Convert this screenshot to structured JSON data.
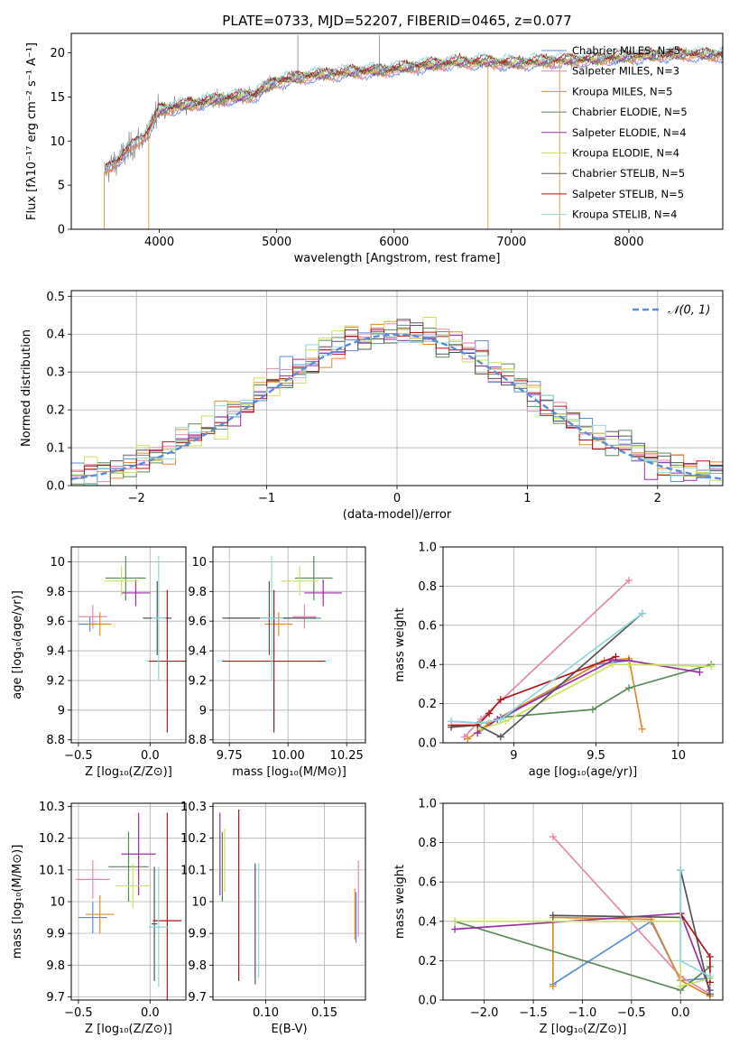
{
  "chart_data": [
    {
      "id": "spectrum",
      "type": "line",
      "title": "PLATE=0733, MJD=52207, FIBERID=0465, z=0.077",
      "xlabel": "wavelength [Angstrom, rest frame]",
      "ylabel": "Flux [fλ10⁻¹⁷ erg cm⁻² s⁻¹ A⁻¹]",
      "xlim": [
        3250,
        8800
      ],
      "ylim": [
        0,
        22.2
      ],
      "xticks": [
        4000,
        5000,
        6000,
        7000,
        8000
      ],
      "yticks": [
        0,
        5,
        10,
        15,
        20
      ],
      "grid": false,
      "legend_position": "top-right",
      "continuum": {
        "x": [
          3530,
          3700,
          3900,
          4000,
          4200,
          4500,
          4800,
          5000,
          5300,
          5600,
          5900,
          6200,
          6500,
          6800,
          7000,
          7200,
          7400,
          7600,
          8000,
          8400,
          8800
        ],
        "y": [
          6.5,
          8.5,
          11.0,
          13.5,
          14.0,
          14.7,
          15.2,
          16.8,
          17.4,
          17.8,
          18.0,
          18.5,
          18.9,
          19.0,
          18.8,
          19.0,
          19.1,
          19.2,
          19.6,
          19.8,
          19.8
        ]
      },
      "series": [
        {
          "name": "Chabrier MILES, N_SSP=5",
          "color": "#5b8cd8",
          "start": 3540
        },
        {
          "name": "Salpeter MILES, N_SSP=3",
          "color": "#e687b0",
          "start": 3540
        },
        {
          "name": "Kroupa MILES, N_SSP=5",
          "color": "#e08a2a",
          "start": 3540
        },
        {
          "name": "Chabrier ELODIE, N_SSP=5",
          "color": "#5a8a5a",
          "start": 3900
        },
        {
          "name": "Salpeter ELODIE, N_SSP=4",
          "color": "#9b2ea8",
          "start": 3900
        },
        {
          "name": "Kroupa ELODIE, N_SSP=4",
          "color": "#c9e45a",
          "start": 3900
        },
        {
          "name": "Chabrier STELIB, N_SSP=5",
          "color": "#555555",
          "start": 3540
        },
        {
          "name": "Salpeter STELIB, N_SSP=5",
          "color": "#b01515",
          "start": 3540
        },
        {
          "name": "Kroupa STELIB, N_SSP=4",
          "color": "#8fd8d8",
          "start": 3540
        }
      ]
    },
    {
      "id": "residuals",
      "type": "bar",
      "xlabel": "(data-model)/error",
      "ylabel": "Normed distribution",
      "xlim": [
        -2.5,
        2.5
      ],
      "ylim": [
        0,
        0.515
      ],
      "xticks": [
        -2,
        -1,
        0,
        1,
        2
      ],
      "xtick_labels": [
        "−2",
        "−1",
        "0",
        "1",
        "2"
      ],
      "yticks": [
        0,
        0.1,
        0.2,
        0.3,
        0.4,
        0.5
      ],
      "ytick_labels": [
        "0.0",
        "0.1",
        "0.2",
        "0.3",
        "0.4",
        "0.5"
      ],
      "grid": true,
      "legend_position": "top-right",
      "reference_label": "𝒩(0, 1)",
      "reference_color": "#5b8cd8",
      "bin_width": 0.1
    },
    {
      "id": "age-vs-Z",
      "type": "scatter",
      "xlabel": "Z [log₁₀(Z/Z⊙)]",
      "ylabel": "age  [log₁₀(age/yr)]",
      "xlim": [
        -0.55,
        0.25
      ],
      "ylim": [
        8.78,
        10.1
      ],
      "xticks": [
        -0.5,
        0.0
      ],
      "xtick_labels": [
        "−0.5",
        "0.0"
      ],
      "yticks": [
        8.8,
        9.0,
        9.2,
        9.4,
        9.6,
        9.8,
        10.0
      ],
      "grid": true,
      "points": [
        {
          "x": -0.42,
          "y": 9.58,
          "xerr": 0.08,
          "yerr": 0.05,
          "color": "#5b8cd8"
        },
        {
          "x": -0.4,
          "y": 9.63,
          "xerr": 0.1,
          "yerr": 0.08,
          "color": "#e687b0"
        },
        {
          "x": -0.35,
          "y": 9.58,
          "xerr": 0.08,
          "yerr": 0.08,
          "color": "#e08a2a"
        },
        {
          "x": -0.17,
          "y": 9.89,
          "xerr": 0.14,
          "yerr": 0.15,
          "color": "#5a8a5a"
        },
        {
          "x": -0.1,
          "y": 9.79,
          "xerr": 0.1,
          "yerr": 0.09,
          "color": "#9b2ea8"
        },
        {
          "x": -0.2,
          "y": 9.87,
          "xerr": 0.12,
          "yerr": 0.1,
          "color": "#c9e45a"
        },
        {
          "x": 0.05,
          "y": 9.62,
          "xerr": 0.1,
          "yerr": 0.25,
          "color": "#555555"
        },
        {
          "x": 0.12,
          "y": 9.33,
          "xerr": 0.13,
          "yerr": 0.48,
          "color": "#b01515"
        },
        {
          "x": 0.06,
          "y": 9.62,
          "xerr": 0.05,
          "yerr": 0.42,
          "color": "#8fd8d8"
        }
      ]
    },
    {
      "id": "age-vs-mass",
      "type": "scatter",
      "xlabel": "mass [log₁₀(M/M⊙)]",
      "xlim": [
        9.68,
        10.33
      ],
      "ylim": [
        8.78,
        10.1
      ],
      "xticks": [
        9.75,
        10.0,
        10.25
      ],
      "xtick_labels": [
        "9.75",
        "10.00",
        "10.25"
      ],
      "yticks": [
        8.8,
        9.0,
        9.2,
        9.4,
        9.6,
        9.8,
        10.0
      ],
      "grid": true,
      "points": [
        {
          "x": 9.94,
          "y": 9.62,
          "xerr": 0.2,
          "yerr": 0.05,
          "color": "#5b8cd8"
        },
        {
          "x": 10.07,
          "y": 9.63,
          "xerr": 0.05,
          "yerr": 0.08,
          "color": "#e687b0"
        },
        {
          "x": 9.96,
          "y": 9.58,
          "xerr": 0.06,
          "yerr": 0.08,
          "color": "#e08a2a"
        },
        {
          "x": 10.11,
          "y": 9.89,
          "xerr": 0.08,
          "yerr": 0.15,
          "color": "#5a8a5a"
        },
        {
          "x": 10.15,
          "y": 9.79,
          "xerr": 0.08,
          "yerr": 0.09,
          "color": "#9b2ea8"
        },
        {
          "x": 10.05,
          "y": 9.87,
          "xerr": 0.08,
          "yerr": 0.1,
          "color": "#c9e45a"
        },
        {
          "x": 9.92,
          "y": 9.62,
          "xerr": 0.2,
          "yerr": 0.25,
          "color": "#555555"
        },
        {
          "x": 9.94,
          "y": 9.33,
          "xerr": 0.22,
          "yerr": 0.48,
          "color": "#b01515"
        },
        {
          "x": 9.93,
          "y": 9.62,
          "xerr": 0.05,
          "yerr": 0.42,
          "color": "#8fd8d8"
        }
      ]
    },
    {
      "id": "weight-vs-age",
      "type": "line",
      "xlabel": "age  [log₁₀(age/yr)]",
      "ylabel": "mass weight",
      "xlim": [
        8.57,
        10.27
      ],
      "ylim": [
        0,
        1.0
      ],
      "xticks": [
        9.0,
        9.5,
        10.0
      ],
      "yticks": [
        0,
        0.2,
        0.4,
        0.6,
        0.8,
        1.0
      ],
      "ytick_labels": [
        "0.0",
        "0.2",
        "0.4",
        "0.6",
        "0.8",
        "1.0"
      ],
      "grid": true,
      "series": [
        {
          "color": "#5b8cd8",
          "x": [
            8.62,
            8.8,
            8.92,
            9.5,
            9.7
          ],
          "y": [
            0.11,
            0.1,
            0.12,
            0.4,
            0.42
          ]
        },
        {
          "color": "#e687b0",
          "x": [
            8.7,
            8.8,
            9.7
          ],
          "y": [
            0.03,
            0.12,
            0.83
          ]
        },
        {
          "color": "#e08a2a",
          "x": [
            8.72,
            8.85,
            9.55,
            9.7,
            9.78
          ],
          "y": [
            0.02,
            0.1,
            0.42,
            0.43,
            0.07
          ]
        },
        {
          "color": "#5a8a5a",
          "x": [
            8.78,
            8.92,
            9.48,
            9.7,
            10.2
          ],
          "y": [
            0.05,
            0.13,
            0.17,
            0.28,
            0.4
          ]
        },
        {
          "color": "#9b2ea8",
          "x": [
            8.78,
            8.9,
            9.6,
            9.7,
            10.13
          ],
          "y": [
            0.05,
            0.12,
            0.42,
            0.42,
            0.36
          ]
        },
        {
          "color": "#c9e45a",
          "x": [
            8.8,
            8.95,
            9.6,
            9.7,
            10.2
          ],
          "y": [
            0.07,
            0.11,
            0.4,
            0.4,
            0.39
          ]
        },
        {
          "color": "#555555",
          "x": [
            8.62,
            8.78,
            8.92,
            9.78
          ],
          "y": [
            0.08,
            0.09,
            0.03,
            0.66
          ]
        },
        {
          "color": "#b01515",
          "x": [
            8.62,
            8.78,
            8.85,
            8.92,
            9.62
          ],
          "y": [
            0.09,
            0.09,
            0.15,
            0.22,
            0.44
          ]
        },
        {
          "color": "#8fd8d8",
          "x": [
            8.62,
            8.8,
            8.92,
            9.78
          ],
          "y": [
            0.11,
            0.1,
            0.12,
            0.66
          ]
        }
      ]
    },
    {
      "id": "mass-vs-Z",
      "type": "scatter",
      "xlabel": "Z [log₁₀(Z/Z⊙)]",
      "ylabel": "mass [log₁₀(M/M⊙)]",
      "xlim": [
        -0.55,
        0.25
      ],
      "ylim": [
        9.69,
        10.31
      ],
      "xticks": [
        -0.5,
        0.0
      ],
      "xtick_labels": [
        "−0.5",
        "0.0"
      ],
      "yticks": [
        9.7,
        9.8,
        9.9,
        10.0,
        10.1,
        10.2,
        10.3
      ],
      "grid": true,
      "points": [
        {
          "x": -0.4,
          "y": 9.95,
          "xerr": 0.1,
          "yerr": 0.05,
          "color": "#5b8cd8"
        },
        {
          "x": -0.4,
          "y": 10.07,
          "xerr": 0.12,
          "yerr": 0.06,
          "color": "#e687b0"
        },
        {
          "x": -0.35,
          "y": 9.96,
          "xerr": 0.1,
          "yerr": 0.06,
          "color": "#e08a2a"
        },
        {
          "x": -0.15,
          "y": 10.11,
          "xerr": 0.14,
          "yerr": 0.11,
          "color": "#5a8a5a"
        },
        {
          "x": -0.08,
          "y": 10.15,
          "xerr": 0.12,
          "yerr": 0.13,
          "color": "#9b2ea8"
        },
        {
          "x": -0.12,
          "y": 10.05,
          "xerr": 0.12,
          "yerr": 0.07,
          "color": "#c9e45a"
        },
        {
          "x": 0.03,
          "y": 9.93,
          "xerr": 0.02,
          "yerr": 0.18,
          "color": "#555555"
        },
        {
          "x": 0.12,
          "y": 9.94,
          "xerr": 0.1,
          "yerr": 0.34,
          "color": "#b01515"
        },
        {
          "x": 0.06,
          "y": 9.92,
          "xerr": 0.07,
          "yerr": 0.19,
          "color": "#8fd8d8"
        }
      ]
    },
    {
      "id": "mass-vs-EBV",
      "type": "scatter",
      "xlabel": "E(B-V)",
      "xlim": [
        0.055,
        0.185
      ],
      "ylim": [
        9.69,
        10.31
      ],
      "xticks": [
        0.1,
        0.15
      ],
      "xtick_labels": [
        "0.10",
        "0.15"
      ],
      "yticks": [
        9.7,
        9.8,
        9.9,
        10.0,
        10.1,
        10.2,
        10.3
      ],
      "grid": true,
      "points": [
        {
          "x": 0.177,
          "y": 9.95,
          "xerr": 0,
          "yerr": 0.08,
          "color": "#5b8cd8"
        },
        {
          "x": 0.179,
          "y": 10.01,
          "xerr": 0,
          "yerr": 0.12,
          "color": "#e687b0"
        },
        {
          "x": 0.176,
          "y": 9.96,
          "xerr": 0,
          "yerr": 0.08,
          "color": "#e08a2a"
        },
        {
          "x": 0.063,
          "y": 10.11,
          "xerr": 0,
          "yerr": 0.11,
          "color": "#5a8a5a"
        },
        {
          "x": 0.061,
          "y": 10.15,
          "xerr": 0,
          "yerr": 0.13,
          "color": "#9b2ea8"
        },
        {
          "x": 0.065,
          "y": 10.13,
          "xerr": 0,
          "yerr": 0.1,
          "color": "#c9e45a"
        },
        {
          "x": 0.091,
          "y": 9.93,
          "xerr": 0,
          "yerr": 0.19,
          "color": "#555555"
        },
        {
          "x": 0.077,
          "y": 10.02,
          "xerr": 0,
          "yerr": 0.27,
          "color": "#b01515"
        },
        {
          "x": 0.094,
          "y": 9.94,
          "xerr": 0,
          "yerr": 0.18,
          "color": "#8fd8d8"
        }
      ]
    },
    {
      "id": "weight-vs-Z",
      "type": "line",
      "xlabel": "Z [log₁₀(Z/Z⊙)]",
      "ylabel": "mass weight",
      "xlim": [
        -2.42,
        0.43
      ],
      "ylim": [
        0,
        1.0
      ],
      "xticks": [
        -2.0,
        -1.5,
        -1.0,
        -0.5,
        0.0
      ],
      "xtick_labels": [
        "−2.0",
        "−1.5",
        "−1.0",
        "−0.5",
        "0.0"
      ],
      "yticks": [
        0,
        0.2,
        0.4,
        0.6,
        0.8,
        1.0
      ],
      "ytick_labels": [
        "0.0",
        "0.2",
        "0.4",
        "0.6",
        "0.8",
        "1.0"
      ],
      "grid": true,
      "series": [
        {
          "color": "#5b8cd8",
          "x": [
            -1.3,
            -0.3,
            0.0,
            0.3
          ],
          "y": [
            0.08,
            0.4,
            0.1,
            0.11
          ]
        },
        {
          "color": "#e687b0",
          "x": [
            -1.3,
            0.0,
            0.3
          ],
          "y": [
            0.83,
            0.12,
            0.03
          ]
        },
        {
          "color": "#e08a2a",
          "x": [
            -1.3,
            -1.3,
            -0.3,
            0.0,
            0.3
          ],
          "y": [
            0.07,
            0.42,
            0.41,
            0.1,
            0.02
          ]
        },
        {
          "color": "#5a8a5a",
          "x": [
            -2.3,
            0.0,
            0.3
          ],
          "y": [
            0.4,
            0.05,
            0.17
          ]
        },
        {
          "color": "#9b2ea8",
          "x": [
            -2.3,
            0.0,
            0.3
          ],
          "y": [
            0.36,
            0.44,
            0.05
          ]
        },
        {
          "color": "#c9e45a",
          "x": [
            -2.3,
            0.0,
            0.0,
            0.3
          ],
          "y": [
            0.4,
            0.4,
            0.07,
            0.11
          ]
        },
        {
          "color": "#555555",
          "x": [
            -1.3,
            0.0,
            0.0,
            0.3
          ],
          "y": [
            0.43,
            0.42,
            0.66,
            0.03
          ]
        },
        {
          "color": "#b01515",
          "x": [
            0.0,
            0.3,
            0.3
          ],
          "y": [
            0.44,
            0.22,
            0.09
          ]
        },
        {
          "color": "#8fd8d8",
          "x": [
            0.0,
            0.0,
            0.3
          ],
          "y": [
            0.66,
            0.2,
            0.12
          ]
        }
      ]
    }
  ]
}
